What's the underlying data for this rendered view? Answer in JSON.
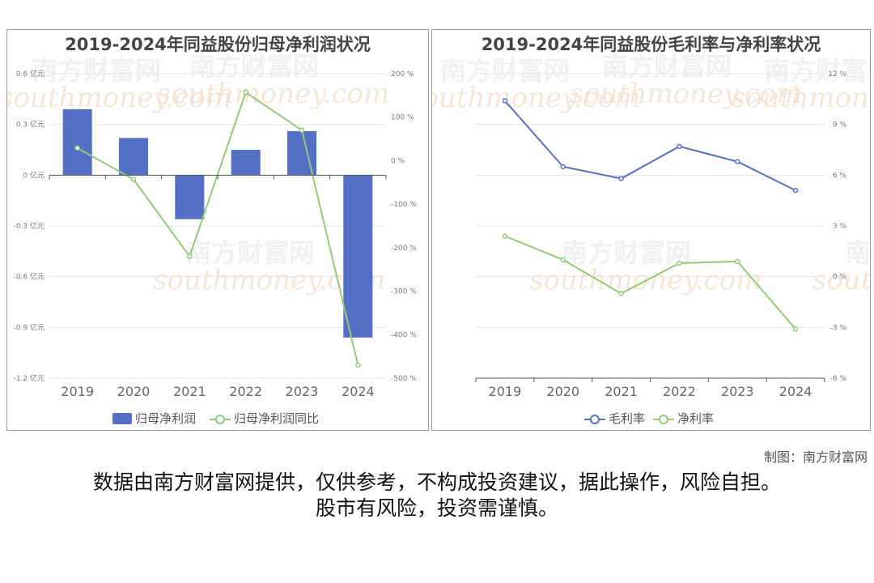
{
  "left_chart": {
    "title": "2019-2024年同益股份归母净利润状况"
  },
  "right_chart": {
    "title": "2019-2024年同益股份毛利率与净利率状况"
  },
  "watermark": {
    "cn": "南方财富网",
    "en": "southmoney.com"
  },
  "footer": {
    "credit": "制图：南方财富网",
    "disclaimer_line1": "数据由南方财富网提供，仅供参考，不构成投资建议，据此操作，风险自担。",
    "disclaimer_line2": "股市有风险，投资需谨慎。"
  },
  "colors": {
    "bar": "#5470c6",
    "line_green": "#91cc75",
    "line_blue": "#5470c6"
  },
  "chart_data": [
    {
      "type": "bar",
      "title": "2019-2024年同益股份归母净利润状况",
      "categories": [
        "2019",
        "2020",
        "2021",
        "2022",
        "2023",
        "2024"
      ],
      "series": [
        {
          "name": "归母净利润",
          "type": "bar",
          "axis": "left",
          "values": [
            0.39,
            0.22,
            -0.26,
            0.15,
            0.26,
            -0.96
          ]
        },
        {
          "name": "归母净利润同比",
          "type": "line",
          "axis": "right",
          "values": [
            29,
            -43,
            -220,
            157,
            70,
            -470
          ]
        }
      ],
      "left_axis": {
        "ylim": [
          -1.2,
          0.6
        ],
        "ticks": [
          0.6,
          0.3,
          0,
          -0.3,
          -0.6,
          -0.9,
          -1.2
        ],
        "tick_labels": [
          "0.6 亿元",
          "0.3 亿元",
          "0 亿元",
          "-0.3 亿元",
          "-0.6 亿元",
          "-0.9 亿元",
          "-1.2 亿元"
        ]
      },
      "right_axis": {
        "ylim": [
          -500,
          200
        ],
        "ticks": [
          200,
          100,
          0,
          -100,
          -200,
          -300,
          -400,
          -500
        ],
        "tick_labels": [
          "200 %",
          "100 %",
          "0 %",
          "-100 %",
          "-200 %",
          "-300 %",
          "-400 %",
          "-500 %"
        ]
      },
      "grid": true,
      "legend": "bottom"
    },
    {
      "type": "line",
      "title": "2019-2024年同益股份毛利率与净利率状况",
      "categories": [
        "2019",
        "2020",
        "2021",
        "2022",
        "2023",
        "2024"
      ],
      "series": [
        {
          "name": "毛利率",
          "values": [
            10.4,
            6.5,
            5.8,
            7.7,
            6.8,
            5.1
          ]
        },
        {
          "name": "净利率",
          "values": [
            2.4,
            1.0,
            -1.0,
            0.8,
            0.9,
            -3.1
          ]
        }
      ],
      "ylim": [
        -6,
        12
      ],
      "ticks": [
        12,
        9,
        6,
        3,
        0,
        -3,
        -6
      ],
      "tick_labels": [
        "12 %",
        "9 %",
        "6 %",
        "3 %",
        "0 %",
        "-3 %",
        "-6 %"
      ],
      "grid": true,
      "legend": "bottom"
    }
  ]
}
